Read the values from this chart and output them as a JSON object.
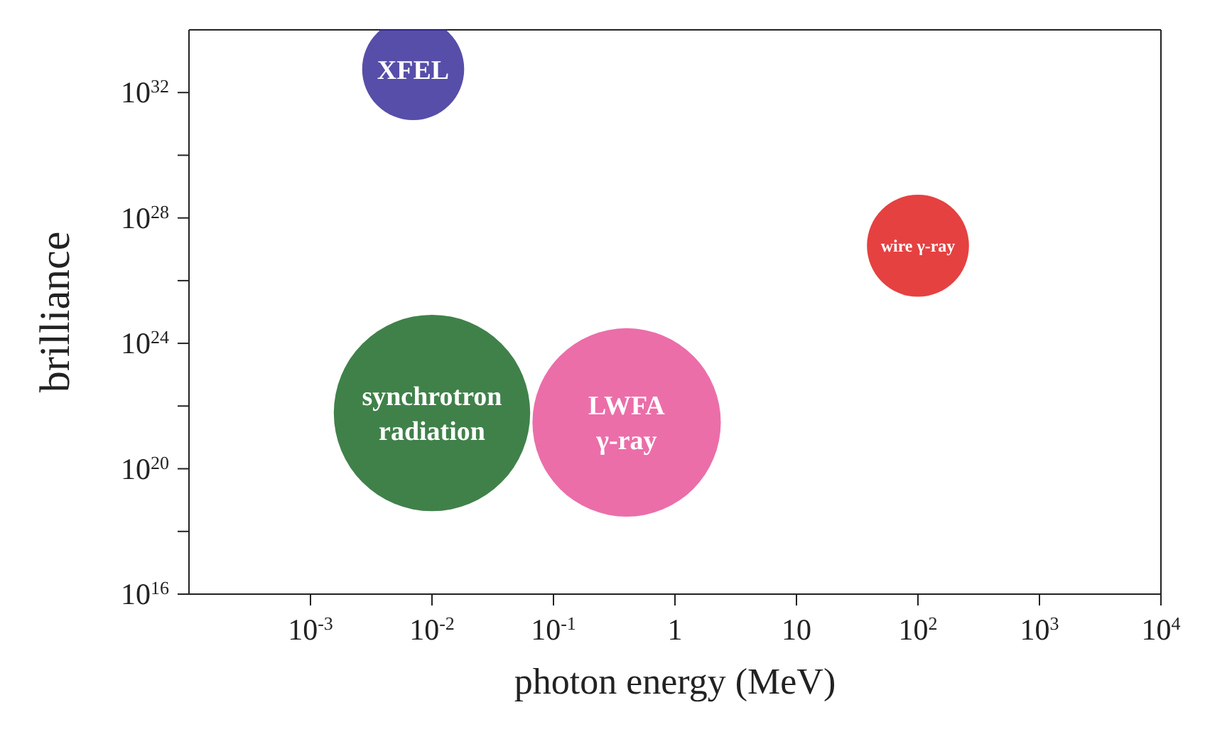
{
  "chart_data": {
    "type": "bubble",
    "xlabel": "photon energy (MeV)",
    "ylabel": "brilliance",
    "log": "xy",
    "legend": false,
    "grid": false,
    "xlim": [
      0.0001,
      10000
    ],
    "xticks": [
      {
        "value": 0.001,
        "label": "10$^{-3}$"
      },
      {
        "value": 0.01,
        "label": "10$^{-2}$"
      },
      {
        "value": 0.1,
        "label": "10$^{-1}$"
      },
      1,
      10,
      {
        "value": 100,
        "label": "10$^{2}$"
      },
      {
        "value": 1000,
        "label": "10$^{3}$"
      },
      {
        "value": 10000,
        "label": "10$^{4}$"
      }
    ],
    "ylim": [
      1e+16,
      1e+34
    ],
    "yticks": [
      {
        "value": 1e+16,
        "label": "10$^{16}$"
      },
      {
        "value": 1e+18,
        "label": null
      },
      {
        "value": 1e+20,
        "label": "10$^{20}$"
      },
      {
        "value": 1e+22,
        "label": null
      },
      {
        "value": 1e+24,
        "label": "10$^{24}$"
      },
      {
        "value": 1e+26,
        "label": null
      },
      {
        "value": 1e+28,
        "label": "10$^{28}$"
      },
      {
        "value": 1e+30,
        "label": null
      },
      {
        "value": 1e+32,
        "label": "10$^{32}$"
      }
    ],
    "series": [
      {
        "name": "XFEL",
        "color": "#3a2f9a",
        "x": [
          0.007
        ],
        "values": [
          5.6e+32
        ],
        "sizes": [
          0.27
        ]
      },
      {
        "name": "wire γ-ray",
        "color": "#e02020",
        "x": [
          100
        ],
        "values": [
          1.3e+27
        ],
        "sizes": [
          0.27
        ]
      },
      {
        "name": "synchrotron\nradiation",
        "color": "#1f6b2a",
        "x": [
          0.01
        ],
        "values": [
          6e+21
        ],
        "sizes": [
          1
        ]
      },
      {
        "name": "LWFA\nγ-ray",
        "color": "#e8559a",
        "x": [
          0.4
        ],
        "values": [
          3e+21
        ],
        "sizes": [
          0.92
        ]
      }
    ]
  }
}
